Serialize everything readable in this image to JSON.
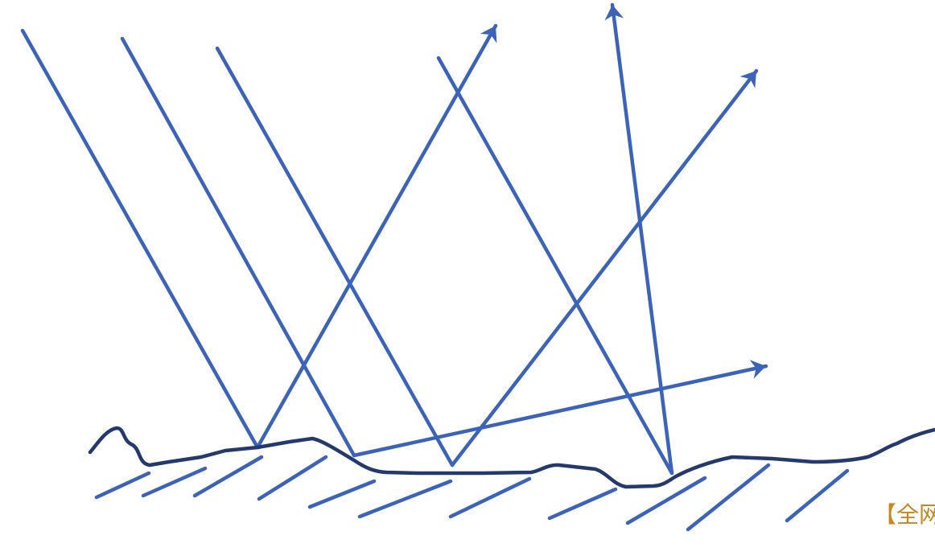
{
  "watermark": "【全网"
}
